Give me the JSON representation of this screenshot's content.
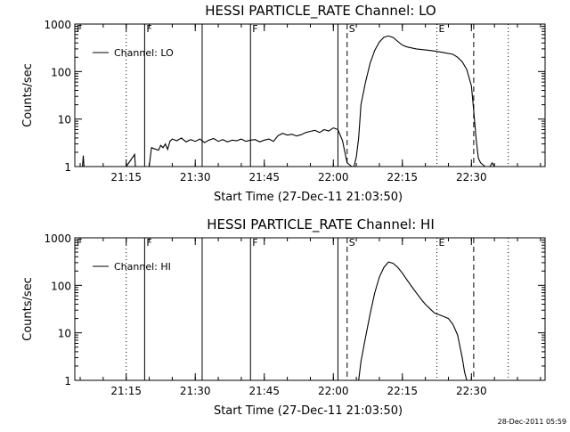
{
  "footer_timestamp": "28-Dec-2011 05:59",
  "chart_data": [
    {
      "type": "line",
      "title": "HESSI PARTICLE_RATE Channel: LO",
      "xlabel": "Start Time (27-Dec-11 21:03:50)",
      "ylabel": "Counts/sec",
      "yscale": "log",
      "ylim": [
        1,
        1000
      ],
      "xlim": [
        "21:03:50",
        "22:46:00"
      ],
      "x_ticks": [
        "21:15",
        "21:30",
        "21:45",
        "22:00",
        "22:15",
        "22:30"
      ],
      "y_ticks": [
        "1",
        "10",
        "100",
        "1000"
      ],
      "legend": "top-left",
      "series": [
        {
          "name": "Channel: LO",
          "x": [
            "21:05:30",
            "21:05:40",
            "21:05:50",
            "21:10:00",
            "21:15:00",
            "21:16:50",
            "21:17:00",
            "21:17:10",
            "21:17:30",
            "21:20:00",
            "21:20:30",
            "21:22:00",
            "21:22:30",
            "21:23:00",
            "21:23:30",
            "21:24:00",
            "21:24:30",
            "21:25:00",
            "21:26:00",
            "21:27:00",
            "21:28:00",
            "21:29:00",
            "21:30:00",
            "21:31:00",
            "21:32:00",
            "21:33:00",
            "21:34:00",
            "21:35:00",
            "21:36:00",
            "21:37:00",
            "21:38:00",
            "21:39:00",
            "21:40:00",
            "21:41:00",
            "21:42:00",
            "21:43:00",
            "21:44:00",
            "21:45:00",
            "21:46:00",
            "21:47:00",
            "21:48:00",
            "21:49:00",
            "21:50:00",
            "21:51:00",
            "21:52:00",
            "21:53:00",
            "21:54:00",
            "21:55:00",
            "21:56:00",
            "21:57:00",
            "21:58:00",
            "21:59:00",
            "22:00:00",
            "22:01:00",
            "22:02:00",
            "22:02:30",
            "22:03:00",
            "22:04:00",
            "22:04:30",
            "22:05:00",
            "22:05:30",
            "22:06:00",
            "22:07:00",
            "22:08:00",
            "22:09:00",
            "22:10:00",
            "22:11:00",
            "22:12:00",
            "22:13:00",
            "22:14:00",
            "22:15:00",
            "22:16:00",
            "22:18:00",
            "22:20:00",
            "22:22:00",
            "22:24:00",
            "22:26:00",
            "22:27:00",
            "22:28:00",
            "22:29:00",
            "22:30:00",
            "22:30:30",
            "22:31:00",
            "22:31:30",
            "22:32:00",
            "22:33:00",
            "22:34:00",
            "22:34:30",
            "22:35:00"
          ],
          "y": [
            1,
            1.7,
            1,
            null,
            1,
            1.8,
            1,
            null,
            1,
            1,
            2.5,
            2.2,
            2.8,
            2.5,
            3.0,
            2.3,
            3.4,
            3.8,
            3.5,
            4.0,
            3.3,
            3.7,
            3.4,
            3.8,
            3.2,
            3.6,
            3.9,
            3.4,
            3.7,
            3.3,
            3.6,
            3.5,
            3.8,
            3.4,
            3.6,
            3.7,
            3.3,
            3.6,
            3.8,
            3.4,
            4.5,
            5.0,
            4.6,
            4.8,
            4.4,
            4.7,
            5.2,
            5.5,
            5.8,
            5.2,
            6.0,
            5.6,
            6.5,
            6.0,
            3.5,
            2.0,
            1.2,
            1.0,
            1.0,
            1.6,
            4,
            20,
            60,
            150,
            280,
            420,
            530,
            560,
            520,
            430,
            360,
            330,
            300,
            285,
            270,
            250,
            230,
            200,
            160,
            110,
            50,
            15,
            4,
            1.5,
            1.2,
            1.0,
            1.0,
            1.2,
            1.0
          ]
        }
      ],
      "vlines": [
        {
          "time": "21:15:00",
          "style": "dotted",
          "label": ""
        },
        {
          "time": "21:19:00",
          "style": "solid",
          "label": "F"
        },
        {
          "time": "21:31:30",
          "style": "solid",
          "label": ""
        },
        {
          "time": "21:42:00",
          "style": "solid",
          "label": "F"
        },
        {
          "time": "22:01:00",
          "style": "solid",
          "label": ""
        },
        {
          "time": "22:03:00",
          "style": "dashed",
          "label": "S"
        },
        {
          "time": "22:22:30",
          "style": "dotted",
          "label": "E"
        },
        {
          "time": "22:30:30",
          "style": "dashed",
          "label": ""
        },
        {
          "time": "22:38:00",
          "style": "dotted",
          "label": ""
        }
      ],
      "corner_flag": "F"
    },
    {
      "type": "line",
      "title": "HESSI PARTICLE_RATE Channel: HI",
      "xlabel": "Start Time (27-Dec-11 21:03:50)",
      "ylabel": "Counts/sec",
      "yscale": "log",
      "ylim": [
        1,
        1000
      ],
      "xlim": [
        "21:03:50",
        "22:46:00"
      ],
      "x_ticks": [
        "21:15",
        "21:30",
        "21:45",
        "22:00",
        "22:15",
        "22:30"
      ],
      "y_ticks": [
        "1",
        "10",
        "100",
        "1000"
      ],
      "legend": "top-left",
      "series": [
        {
          "name": "Channel: HI",
          "x": [
            "22:05:30",
            "22:06:00",
            "22:07:00",
            "22:08:00",
            "22:09:00",
            "22:10:00",
            "22:11:00",
            "22:12:00",
            "22:13:00",
            "22:14:00",
            "22:15:00",
            "22:16:00",
            "22:17:00",
            "22:18:00",
            "22:19:00",
            "22:20:00",
            "22:21:00",
            "22:22:00",
            "22:23:00",
            "22:24:00",
            "22:25:00",
            "22:26:00",
            "22:27:00",
            "22:28:00",
            "22:28:30",
            "22:29:00"
          ],
          "y": [
            1,
            2.5,
            8,
            25,
            70,
            150,
            240,
            310,
            290,
            240,
            180,
            130,
            95,
            70,
            52,
            40,
            32,
            26,
            24,
            22,
            20,
            15,
            9,
            3,
            1.5,
            1
          ]
        }
      ],
      "vlines": [
        {
          "time": "21:15:00",
          "style": "dotted",
          "label": ""
        },
        {
          "time": "21:19:00",
          "style": "solid",
          "label": "F"
        },
        {
          "time": "21:31:30",
          "style": "solid",
          "label": ""
        },
        {
          "time": "21:42:00",
          "style": "solid",
          "label": "F"
        },
        {
          "time": "22:01:00",
          "style": "solid",
          "label": ""
        },
        {
          "time": "22:03:00",
          "style": "dashed",
          "label": "S"
        },
        {
          "time": "22:22:30",
          "style": "dotted",
          "label": "E"
        },
        {
          "time": "22:30:30",
          "style": "dashed",
          "label": ""
        },
        {
          "time": "22:38:00",
          "style": "dotted",
          "label": ""
        }
      ],
      "corner_flag": "F"
    }
  ]
}
